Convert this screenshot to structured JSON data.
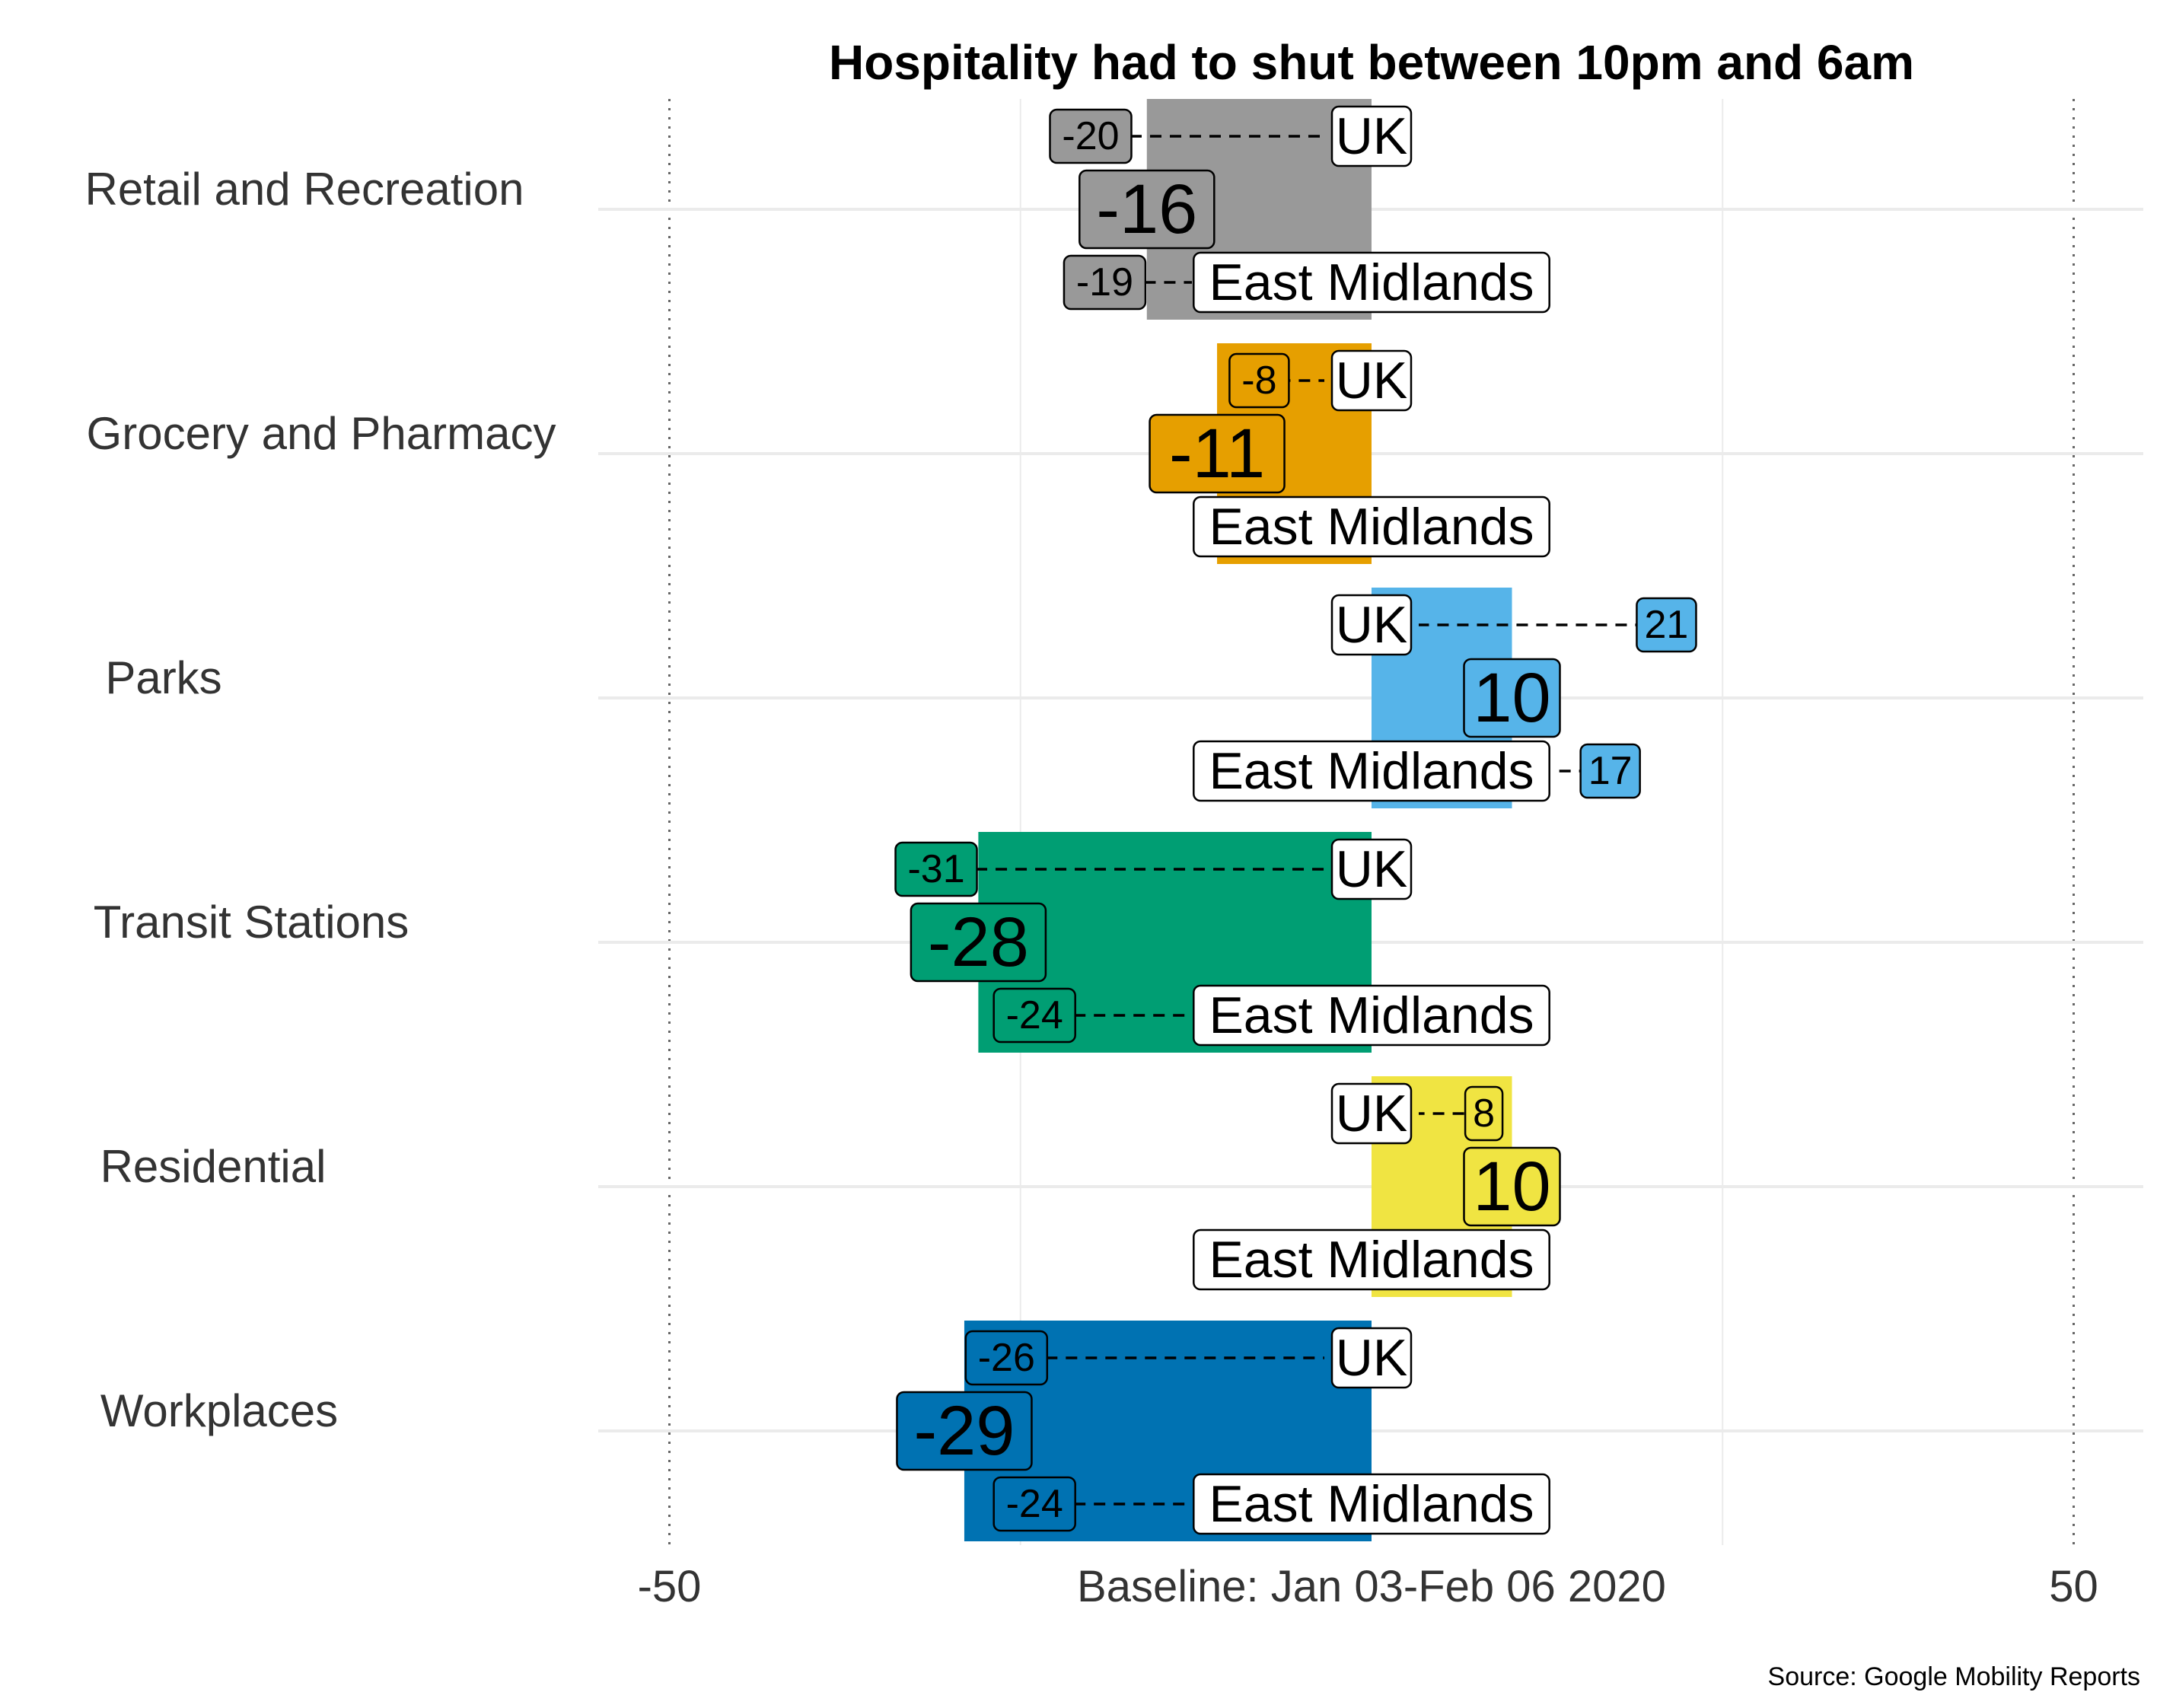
{
  "chart_data": {
    "type": "bar",
    "orientation": "horizontal",
    "title": "Hospitality had to shut between 10pm and 6am",
    "xlabel": "Baseline: Jan 03-Feb 06 2020",
    "xlim": [
      -50,
      50
    ],
    "x_ticks": [
      "-50",
      "50"
    ],
    "x_tick_values": [
      -50,
      50
    ],
    "caption": "Source: Google Mobility Reports",
    "uk_label": "UK",
    "region_label": "East Midlands",
    "categories": [
      "Retail and Recreation",
      "Grocery and Pharmacy",
      "Parks",
      "Transit Stations",
      "Residential",
      "Workplaces"
    ],
    "series": [
      {
        "values": [
          -16,
          -11,
          10,
          -28,
          10,
          -29
        ],
        "colors": [
          "#999999",
          "#E69F00",
          "#56B4E9",
          "#009E73",
          "#F0E442",
          "#0072B2"
        ]
      }
    ],
    "uk_values": [
      -20,
      -8,
      21,
      -31,
      8,
      -26
    ],
    "region_values": [
      -19,
      -11,
      17,
      -24,
      10,
      -24
    ],
    "grid": true
  }
}
